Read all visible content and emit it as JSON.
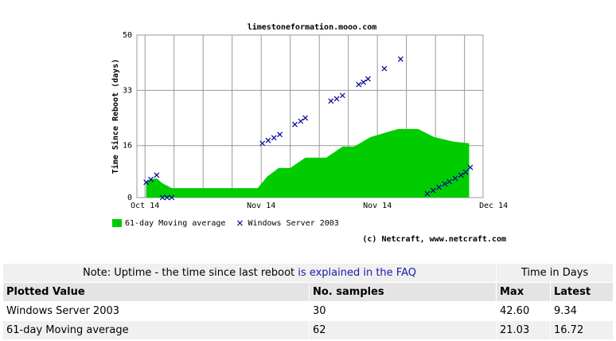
{
  "chart_data": {
    "type": "area_scatter",
    "title": "limestoneformation.mooo.com",
    "ylabel": "Time Since Reboot (days)",
    "credit": "(c) Netcraft, www.netcraft.com",
    "xlim": [
      -0.07,
      2.91
    ],
    "ylim": [
      0,
      50
    ],
    "yticks": [
      0,
      16,
      33,
      50
    ],
    "xticks": [
      {
        "value": 0,
        "label": "Oct 14"
      },
      {
        "value": 1,
        "label": "Nov 14"
      },
      {
        "value": 2,
        "label": "Nov 14"
      },
      {
        "value": 3,
        "label": "Dec 14"
      }
    ],
    "xgrid": [
      0.25,
      0.5,
      0.75,
      1.25,
      1.5,
      1.75,
      2.25,
      2.5,
      2.75
    ],
    "grid": true,
    "series": [
      {
        "name": "61-day Moving average",
        "kind": "area",
        "color": "#00cc00",
        "x": [
          0.01,
          0.05,
          0.1,
          0.15,
          0.23,
          0.97,
          1.05,
          1.15,
          1.25,
          1.38,
          1.56,
          1.7,
          1.8,
          1.94,
          2.08,
          2.18,
          2.35,
          2.49,
          2.66,
          2.79
        ],
        "values": [
          4.7,
          5.6,
          5.9,
          4.4,
          2.9,
          2.9,
          6.4,
          9.1,
          9.1,
          12.3,
          12.3,
          15.7,
          15.7,
          18.6,
          20.1,
          21.1,
          21.1,
          18.6,
          17.2,
          16.7
        ]
      },
      {
        "name": "Windows Server 2003",
        "kind": "scatter",
        "color": "#000099",
        "x": [
          0.01,
          0.05,
          0.1,
          0.15,
          0.19,
          0.23,
          1.01,
          1.06,
          1.11,
          1.16,
          1.29,
          1.34,
          1.38,
          1.6,
          1.65,
          1.7,
          1.84,
          1.88,
          1.92,
          2.06,
          2.2,
          2.43,
          2.48,
          2.53,
          2.58,
          2.62,
          2.67,
          2.72,
          2.76,
          2.8
        ],
        "values": [
          4.7,
          5.6,
          6.9,
          0,
          0,
          0,
          16.7,
          17.6,
          18.4,
          19.4,
          22.5,
          23.5,
          24.5,
          29.7,
          30.4,
          31.4,
          34.8,
          35.5,
          36.5,
          39.7,
          42.6,
          1.2,
          2.2,
          3.2,
          4.2,
          4.9,
          5.9,
          6.9,
          7.8,
          9.3
        ]
      }
    ]
  },
  "table": {
    "note": "Note: Uptime - the time since last reboot",
    "note_link": "is explained in the FAQ",
    "group_header": "Time in Days",
    "headers": [
      "Plotted Value",
      "No. samples",
      "Max",
      "Latest"
    ],
    "rows": [
      [
        "Windows Server 2003",
        "30",
        "42.60",
        "9.34"
      ],
      [
        "61-day Moving average",
        "62",
        "21.03",
        "16.72"
      ]
    ]
  }
}
